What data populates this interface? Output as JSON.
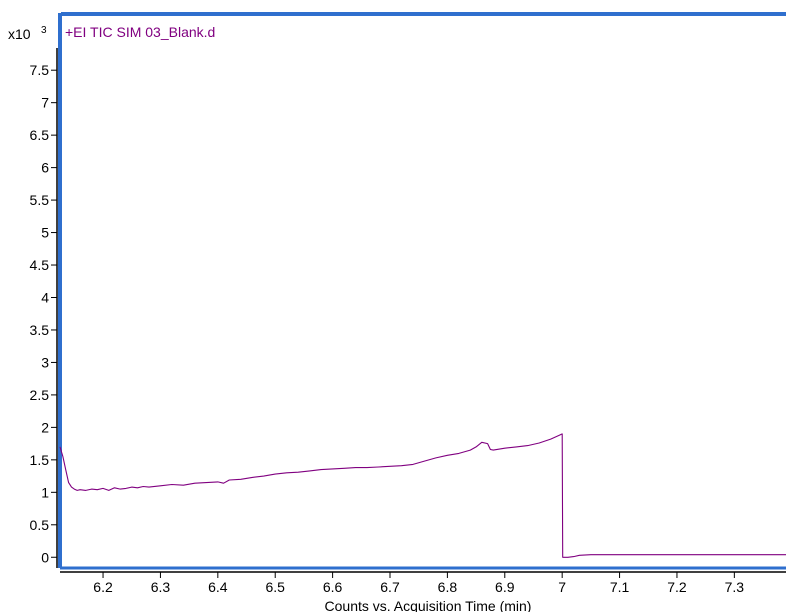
{
  "chart_data": {
    "type": "line",
    "title": "+EI TIC SIM 03_Blank.d",
    "xlabel": "Counts vs. Acquisition Time (min)",
    "y_multiplier_base": "x10",
    "y_multiplier_exp": "3",
    "xlim": [
      6.125,
      7.39
    ],
    "ylim": [
      -0.15,
      8.35
    ],
    "x_ticks": [
      6.2,
      6.3,
      6.4,
      6.5,
      6.6,
      6.7,
      6.8,
      6.9,
      7.0,
      7.1,
      7.2,
      7.3
    ],
    "x_tick_labels": [
      "6.2",
      "6.3",
      "6.4",
      "6.5",
      "6.6",
      "6.7",
      "6.8",
      "6.9",
      "7",
      "7.1",
      "7.2",
      "7.3"
    ],
    "y_ticks": [
      0,
      0.5,
      1,
      1.5,
      2,
      2.5,
      3,
      3.5,
      4,
      4.5,
      5,
      5.5,
      6,
      6.5,
      7,
      7.5
    ],
    "y_tick_labels": [
      "0",
      "0.5",
      "1",
      "1.5",
      "2",
      "2.5",
      "3",
      "3.5",
      "4",
      "4.5",
      "5",
      "5.5",
      "6",
      "6.5",
      "7",
      "7.5"
    ],
    "grid": false,
    "colors": {
      "series": "#800080",
      "frame": "#2f6fce",
      "axis": "#000000"
    },
    "series": [
      {
        "x": [
          6.125,
          6.13,
          6.135,
          6.14,
          6.145,
          6.15,
          6.155,
          6.16,
          6.17,
          6.18,
          6.19,
          6.2,
          6.21,
          6.22,
          6.23,
          6.24,
          6.25,
          6.26,
          6.27,
          6.28,
          6.3,
          6.32,
          6.34,
          6.36,
          6.38,
          6.4,
          6.41,
          6.42,
          6.44,
          6.46,
          6.48,
          6.5,
          6.52,
          6.54,
          6.56,
          6.58,
          6.6,
          6.62,
          6.64,
          6.66,
          6.68,
          6.7,
          6.72,
          6.74,
          6.76,
          6.78,
          6.8,
          6.82,
          6.84,
          6.85,
          6.86,
          6.87,
          6.875,
          6.88,
          6.9,
          6.92,
          6.94,
          6.96,
          6.98,
          6.995,
          7.0,
          7.001,
          7.01,
          7.02,
          7.03,
          7.05,
          7.1,
          7.2,
          7.3,
          7.39
        ],
        "y": [
          1.7,
          1.55,
          1.35,
          1.15,
          1.08,
          1.05,
          1.03,
          1.04,
          1.03,
          1.05,
          1.04,
          1.06,
          1.03,
          1.07,
          1.05,
          1.06,
          1.08,
          1.07,
          1.09,
          1.08,
          1.1,
          1.12,
          1.11,
          1.14,
          1.15,
          1.16,
          1.14,
          1.19,
          1.2,
          1.23,
          1.25,
          1.28,
          1.3,
          1.31,
          1.33,
          1.35,
          1.36,
          1.37,
          1.38,
          1.38,
          1.39,
          1.4,
          1.41,
          1.43,
          1.48,
          1.53,
          1.57,
          1.6,
          1.65,
          1.7,
          1.77,
          1.75,
          1.66,
          1.65,
          1.68,
          1.7,
          1.72,
          1.76,
          1.82,
          1.88,
          1.9,
          0.0,
          0.0,
          0.01,
          0.03,
          0.04,
          0.04,
          0.04,
          0.04,
          0.04
        ]
      }
    ]
  }
}
